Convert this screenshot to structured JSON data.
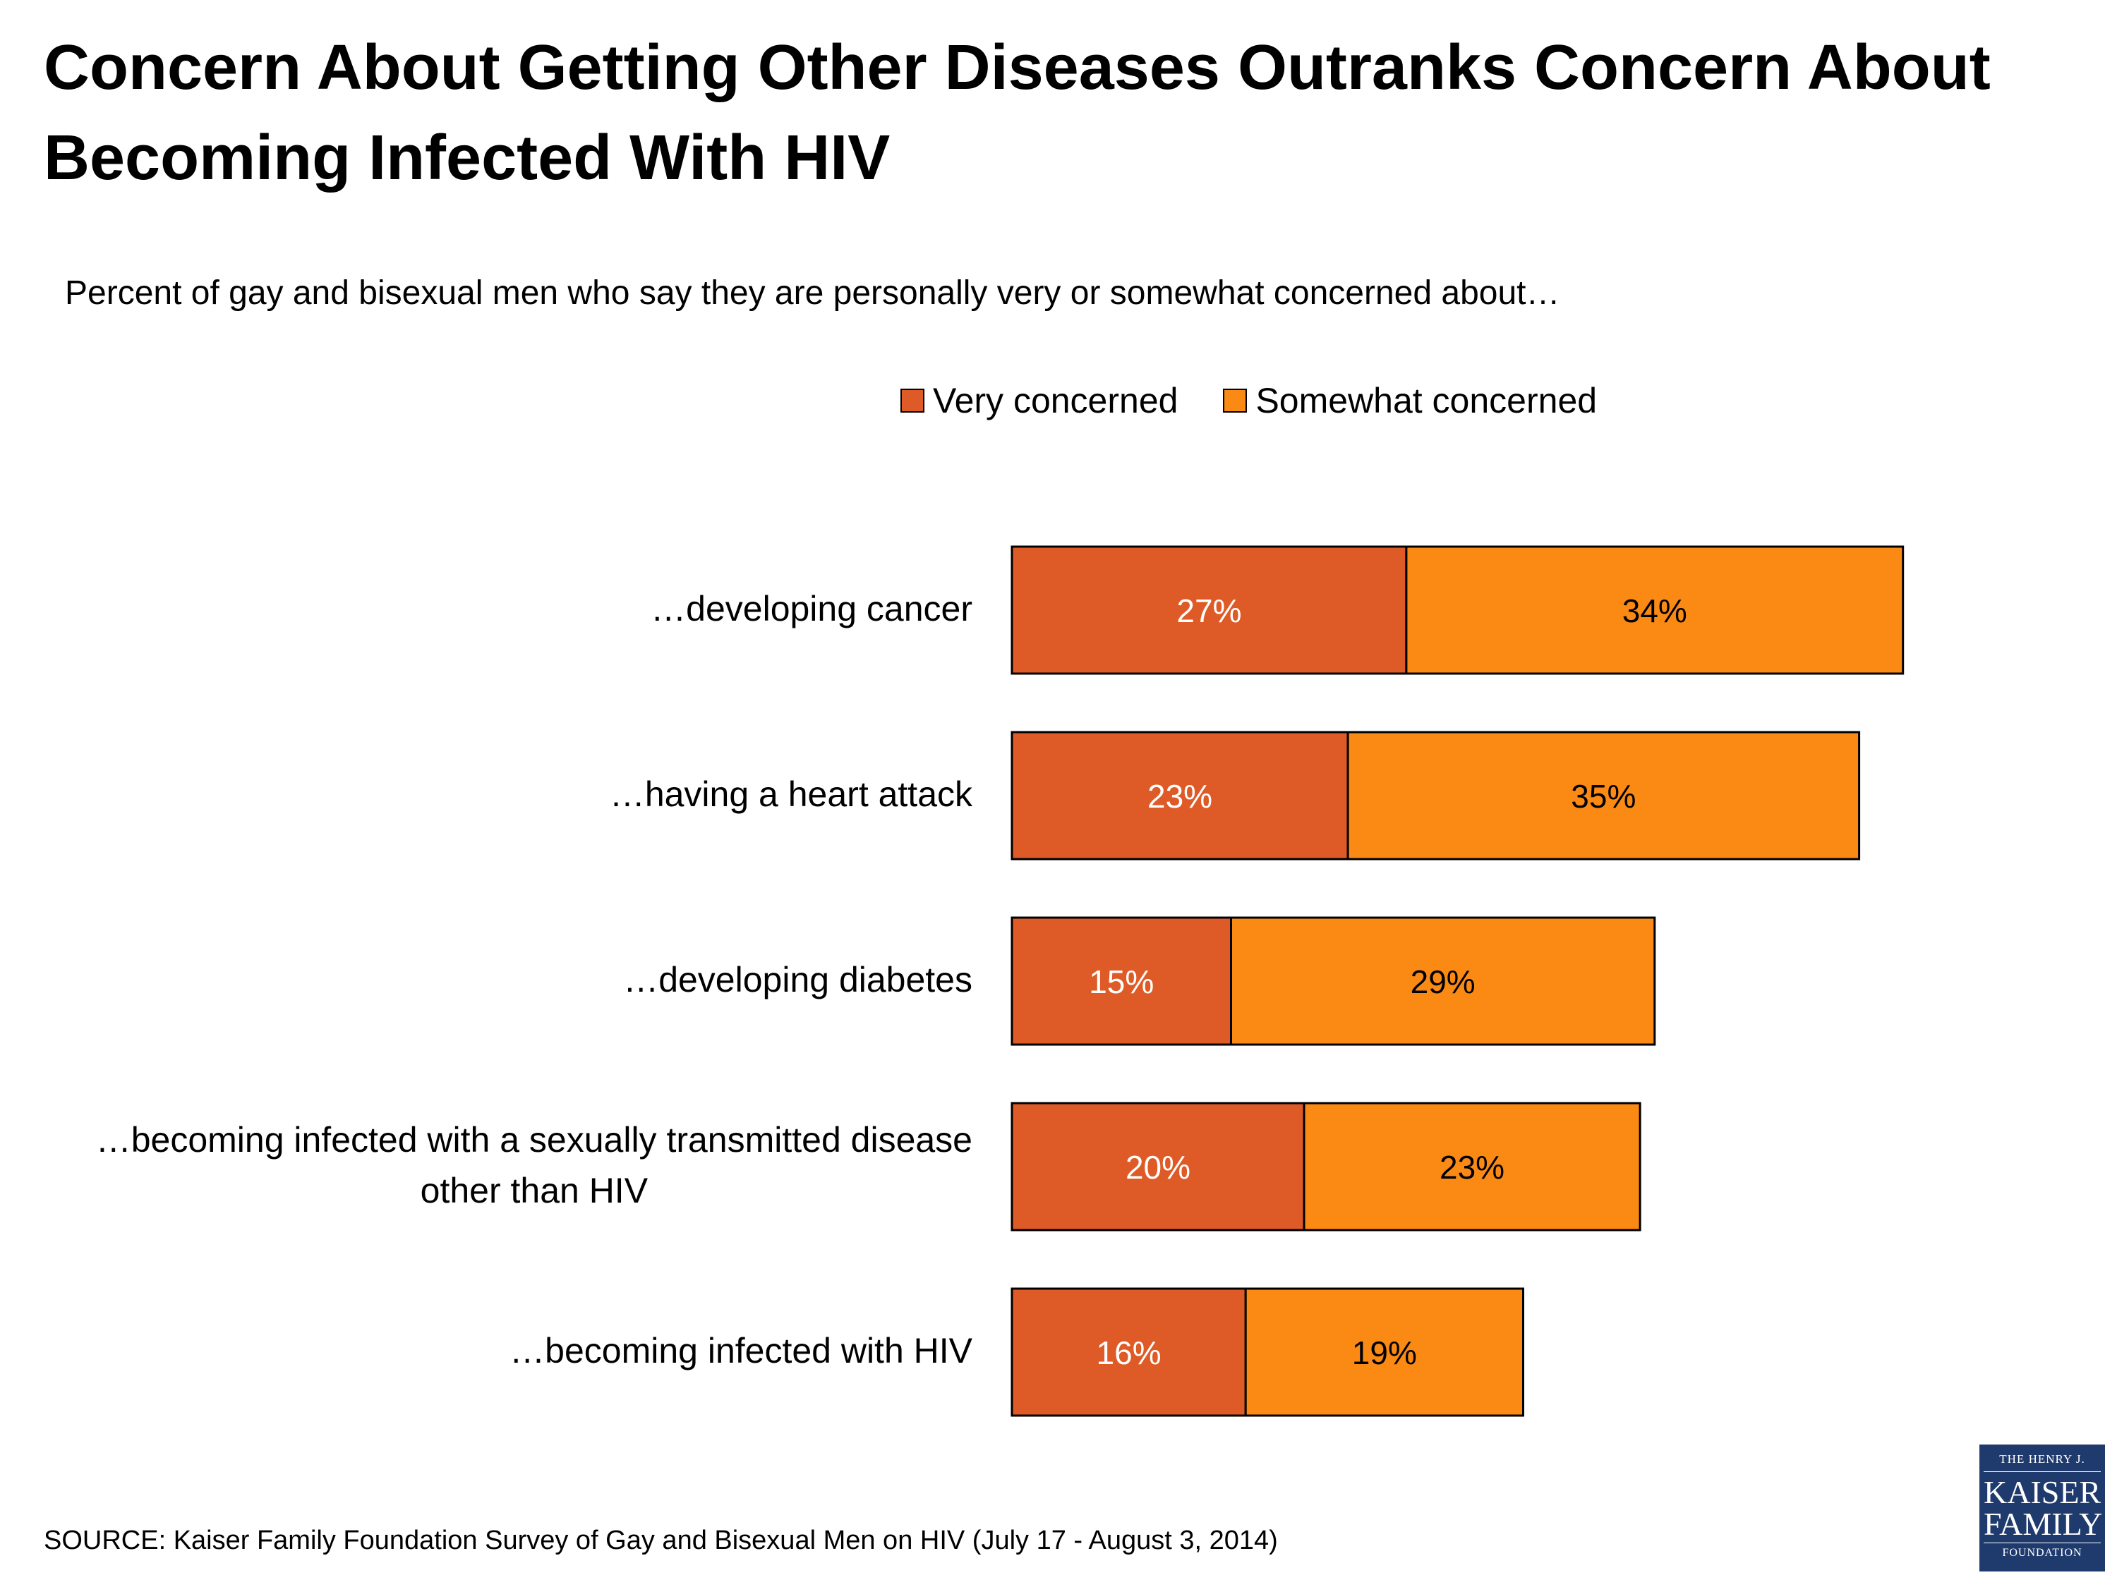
{
  "chart_data": {
    "type": "bar",
    "orientation": "horizontal",
    "stacked": true,
    "title": "Concern About Getting Other Diseases Outranks Concern About Becoming Infected With HIV",
    "subtitle": "Percent of gay and bisexual men who say they are personally very or somewhat concerned about…",
    "categories": [
      [
        "…developing cancer"
      ],
      [
        "…having a heart attack"
      ],
      [
        "…developing diabetes"
      ],
      [
        "…becoming infected with a sexually transmitted disease",
        "other than HIV"
      ],
      [
        "…becoming infected with HIV"
      ]
    ],
    "series": [
      {
        "name": "Very concerned",
        "color": "#de5b27",
        "label_color": "#ffffff",
        "values": [
          27,
          23,
          15,
          20,
          16
        ]
      },
      {
        "name": "Somewhat concerned",
        "color": "#fb8a15",
        "label_color": "#000000",
        "values": [
          34,
          35,
          29,
          23,
          19
        ]
      }
    ],
    "value_suffix": "%",
    "xlim": [
      0,
      61
    ],
    "legend_position": "top"
  },
  "source": "SOURCE: Kaiser Family Foundation Survey of Gay and Bisexual Men on HIV (July 17 - August 3, 2014)",
  "logo": {
    "line1": "THE HENRY J.",
    "line2": "KAISER",
    "line3": "FAMILY",
    "line4": "FOUNDATION"
  }
}
